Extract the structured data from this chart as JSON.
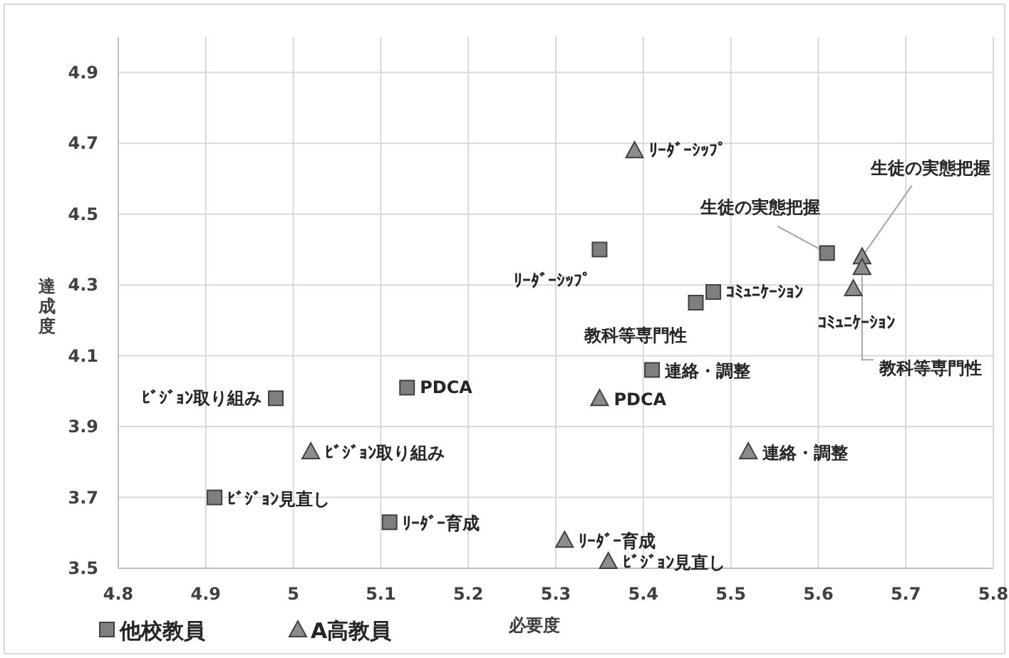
{
  "chart_data": {
    "type": "scatter",
    "xlabel": "必要度",
    "ylabel": "達成度",
    "xlim": [
      4.8,
      5.8
    ],
    "ylim": [
      3.5,
      5.0
    ],
    "xticks": [
      4.8,
      4.9,
      5,
      5.1,
      5.2,
      5.3,
      5.4,
      5.5,
      5.6,
      5.7,
      5.8
    ],
    "yticks": [
      3.5,
      3.7,
      3.9,
      4.1,
      4.3,
      4.5,
      4.7,
      4.9
    ],
    "grid": true,
    "legend": "bottom left",
    "series": [
      {
        "name": "他校教員",
        "color": "#7f7f7f",
        "marker": "square",
        "x": [
          4.98,
          5.13,
          4.91,
          5.11,
          5.35,
          5.46,
          5.48,
          5.41,
          5.61
        ],
        "values": [
          3.98,
          4.01,
          3.7,
          3.63,
          4.4,
          4.25,
          4.28,
          4.06,
          4.39
        ],
        "value_labels": [
          "ﾋﾞｼﾞｮﾝ取り組み",
          "PDCA",
          "ﾋﾞｼﾞｮﾝ見直し",
          "ﾘｰﾀﾞｰ育成",
          "ﾘｰﾀﾞｰｼｯﾌﾟ",
          "教科等専門性",
          "ｺﾐｭﾆｹｰｼｮﾝ",
          "連絡・調整",
          "生徒の実態把握"
        ]
      },
      {
        "name": "A高教員",
        "color": "#8c8c8c",
        "marker": "triangle",
        "x": [
          5.39,
          5.65,
          5.65,
          5.64,
          5.35,
          5.52,
          5.02,
          5.31,
          5.36
        ],
        "values": [
          4.68,
          4.38,
          4.35,
          4.29,
          3.98,
          3.83,
          3.83,
          3.58,
          3.52
        ],
        "value_labels": [
          "ﾘｰﾀﾞｰｼｯﾌﾟ",
          "生徒の実態把握",
          "教科等専門性",
          "ｺﾐｭﾆｹｰｼｮﾝ",
          "PDCA",
          "連絡・調整",
          "ﾋﾞｼﾞｮﾝ取り組み",
          "ﾘｰﾀﾞｰ育成",
          "ﾋﾞｼﾞｮﾝ見直し"
        ]
      }
    ]
  }
}
